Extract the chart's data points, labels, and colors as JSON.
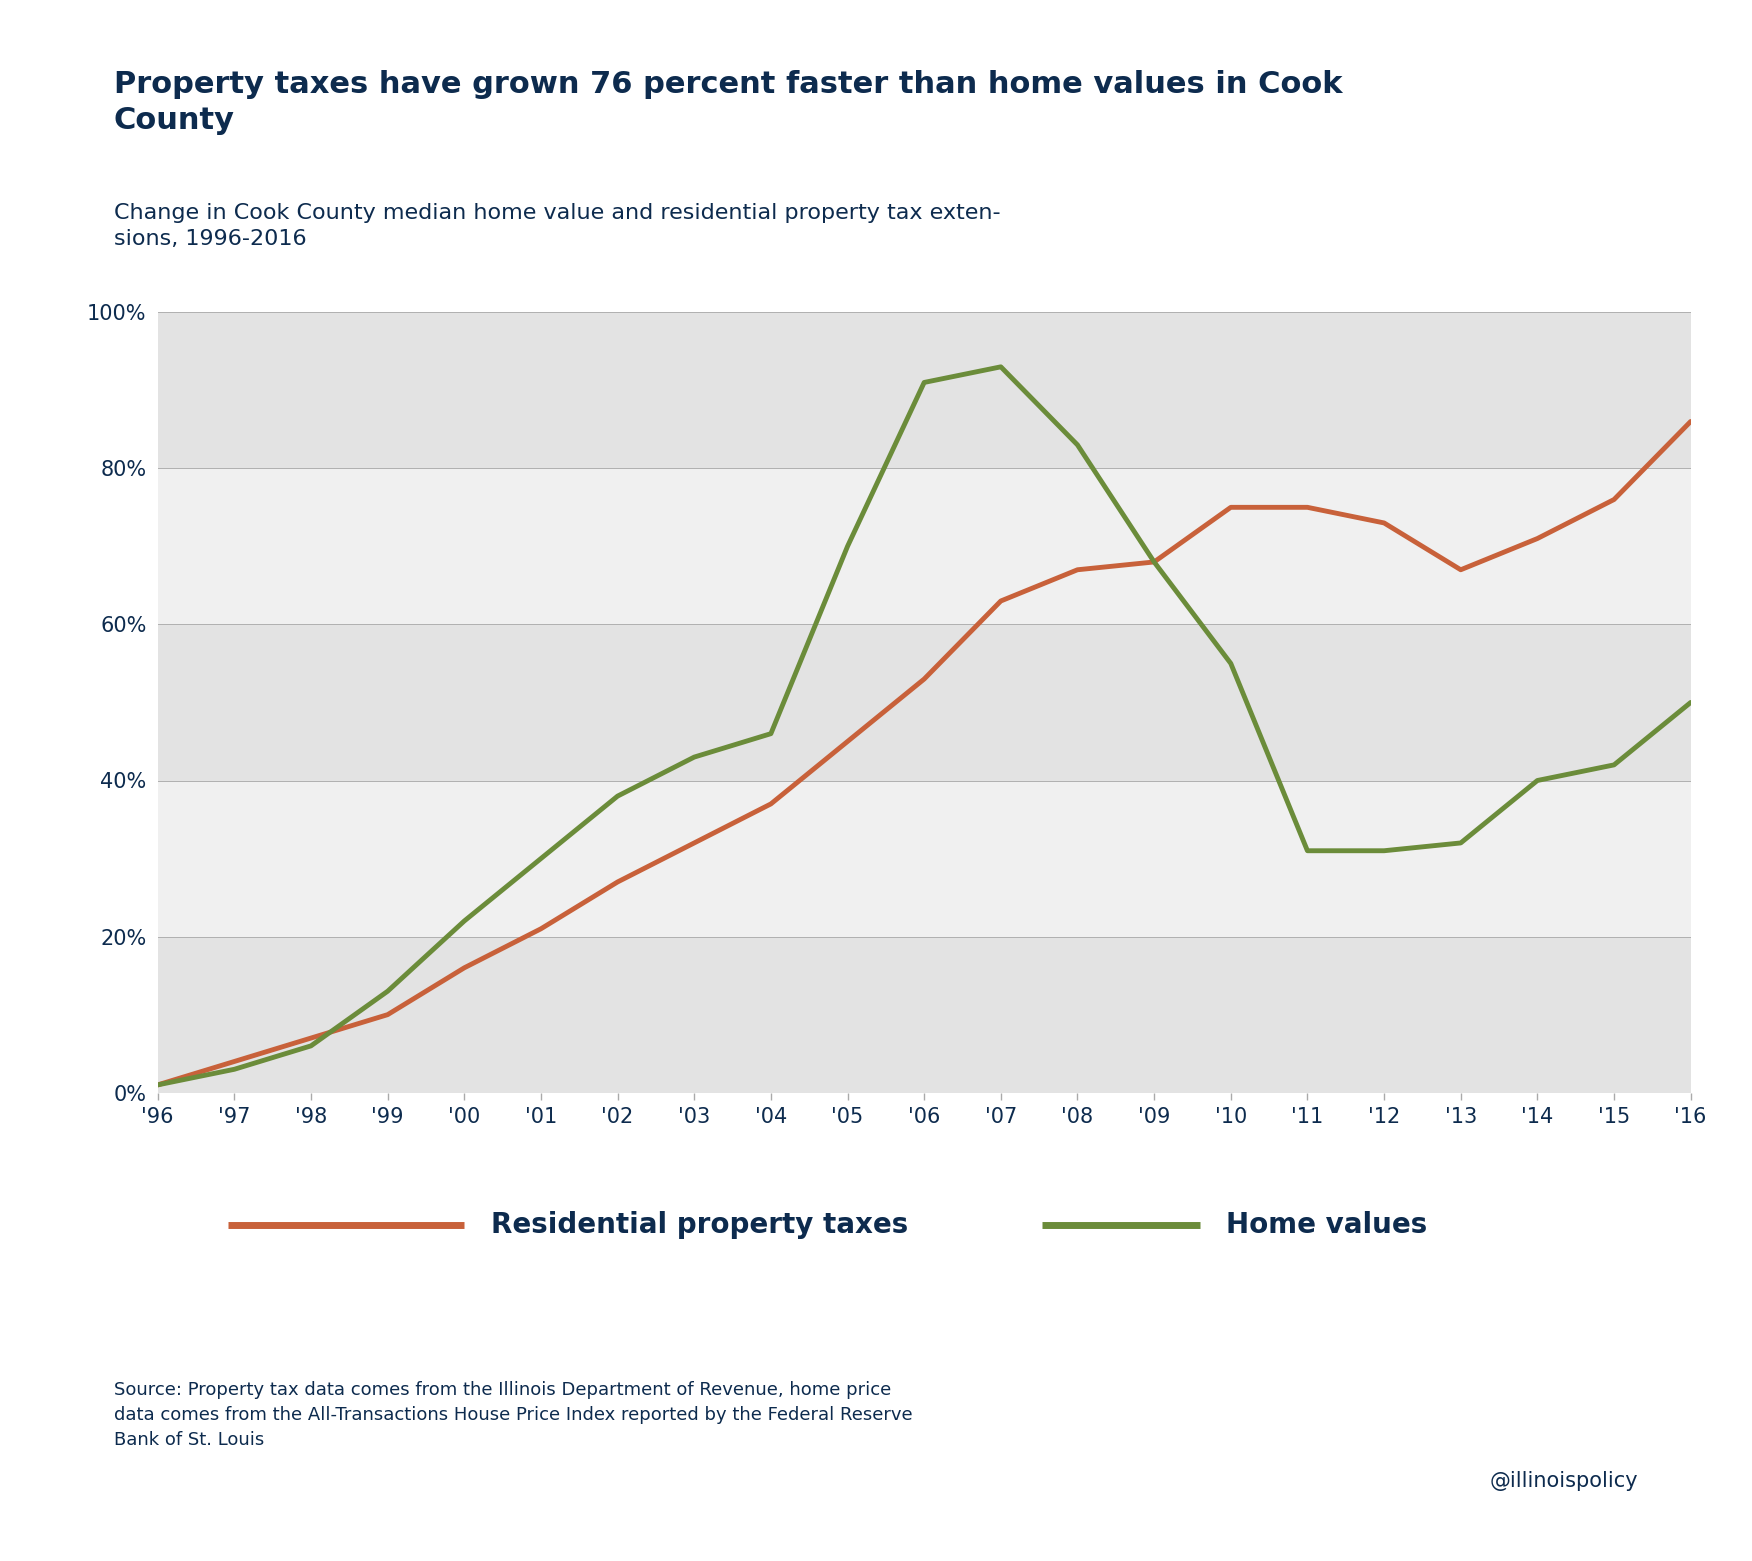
{
  "title": "Property taxes have grown 76 percent faster than home values in Cook\nCounty",
  "subtitle": "Change in Cook County median home value and residential property tax exten-\nsions, 1996-2016",
  "years": [
    1996,
    1997,
    1998,
    1999,
    2000,
    2001,
    2002,
    2003,
    2004,
    2005,
    2006,
    2007,
    2008,
    2009,
    2010,
    2011,
    2012,
    2013,
    2014,
    2015,
    2016
  ],
  "prop_tax": [
    1,
    4,
    7,
    10,
    16,
    21,
    27,
    32,
    37,
    45,
    53,
    63,
    67,
    68,
    75,
    75,
    73,
    67,
    71,
    76,
    86
  ],
  "home_values": [
    1,
    3,
    6,
    13,
    22,
    30,
    38,
    43,
    46,
    70,
    91,
    93,
    83,
    68,
    55,
    31,
    31,
    32,
    40,
    42,
    50
  ],
  "prop_tax_color": "#c8613a",
  "home_values_color": "#6b8c3a",
  "title_color": "#0d2b4e",
  "subtitle_color": "#0d2b4e",
  "axis_label_color": "#0d2b4e",
  "legend_label_color": "#0d2b4e",
  "source_text": "Source: Property tax data comes from the Illinois Department of Revenue, home price\ndata comes from the All-Transactions House Price Index reported by the Federal Reserve\nBank of St. Louis",
  "watermark": "@illinoispolicy",
  "bg_color": "#ffffff",
  "band_dark": "#e3e3e3",
  "band_light": "#f0f0f0",
  "ylim": [
    0,
    100
  ],
  "yticks": [
    0,
    20,
    40,
    60,
    80,
    100
  ],
  "line_width": 3.5,
  "title_fontsize": 22,
  "subtitle_fontsize": 16,
  "tick_fontsize": 15,
  "legend_fontsize": 20,
  "source_fontsize": 13,
  "x_tick_labels": [
    "'96",
    "'97",
    "'98",
    "'99",
    "'00",
    "'01",
    "'02",
    "'03",
    "'04",
    "'05",
    "'06",
    "'07",
    "'08",
    "'09",
    "'10",
    "'11",
    "'12",
    "'13",
    "'14",
    "'15",
    "'16"
  ]
}
